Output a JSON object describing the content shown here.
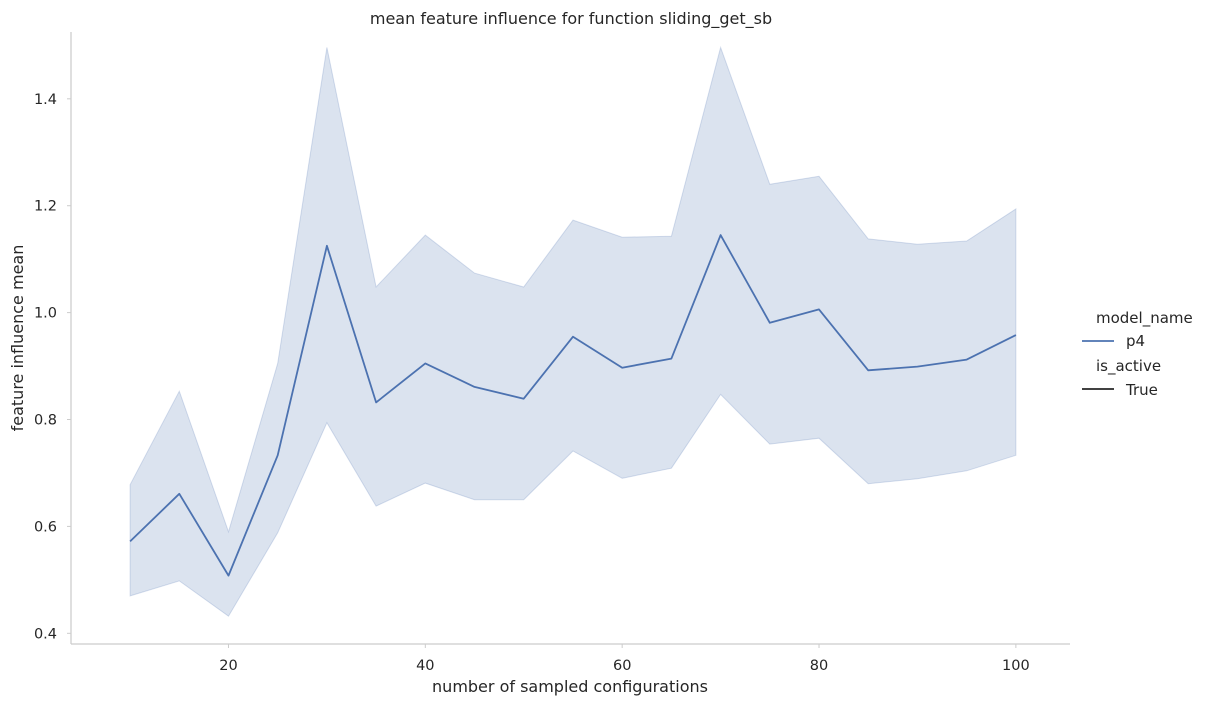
{
  "chart_data": {
    "type": "line",
    "title": "mean feature influence for function sliding_get_sb",
    "xlabel": "number of sampled configurations",
    "ylabel": "feature influence mean",
    "xlim": [
      4.0,
      105.5
    ],
    "ylim": [
      0.38,
      1.525
    ],
    "xticks": [
      20,
      40,
      60,
      80,
      100
    ],
    "yticks": [
      0.4,
      0.6,
      0.8,
      1.0,
      1.2,
      1.4
    ],
    "ytick_labels": [
      "0.4",
      "0.6",
      "0.8",
      "1.0",
      "1.2",
      "1.4"
    ],
    "grid": false,
    "legend_position": "right",
    "legend": {
      "hue_title": "model_name",
      "hue_entries": [
        "p4"
      ],
      "style_title": "is_active",
      "style_entries": [
        "True"
      ]
    },
    "series": [
      {
        "name": "p4",
        "color": "#4c72b0",
        "band_color": "#4c72b0",
        "x": [
          10,
          15,
          20,
          25,
          30,
          35,
          40,
          45,
          50,
          55,
          60,
          65,
          70,
          75,
          80,
          85,
          90,
          95,
          100
        ],
        "y": [
          0.572,
          0.661,
          0.508,
          0.733,
          1.125,
          0.832,
          0.905,
          0.861,
          0.839,
          0.955,
          0.897,
          0.914,
          1.145,
          0.981,
          1.006,
          0.892,
          0.899,
          0.912,
          0.958
        ],
        "lower": [
          0.47,
          0.498,
          0.432,
          0.588,
          0.794,
          0.638,
          0.681,
          0.65,
          0.65,
          0.741,
          0.69,
          0.709,
          0.847,
          0.754,
          0.765,
          0.68,
          0.689,
          0.704,
          0.733
        ],
        "upper": [
          0.678,
          0.853,
          0.59,
          0.905,
          1.496,
          1.048,
          1.145,
          1.074,
          1.048,
          1.173,
          1.141,
          1.143,
          1.496,
          1.24,
          1.255,
          1.138,
          1.128,
          1.134,
          1.194
        ]
      }
    ]
  }
}
